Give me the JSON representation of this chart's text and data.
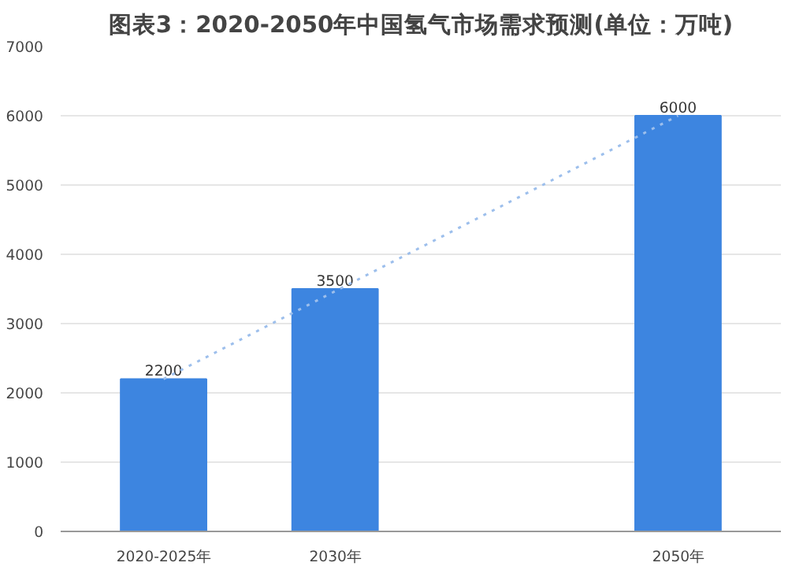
{
  "chart_data": {
    "type": "bar",
    "title": "图表3：2020-2050年中国氢气市场需求预测(单位：万吨)",
    "categories": [
      "2020-2025年",
      "2030年",
      null,
      "2050年"
    ],
    "series": [
      {
        "color": "#3d85e0",
        "values": [
          2200,
          3500,
          null,
          6000
        ],
        "value_labels": [
          "2200",
          "3500",
          null,
          "6000"
        ]
      },
      {
        "type": "line",
        "color": "#9dbfec",
        "line_style": "dotted",
        "values": [
          2200,
          null,
          null,
          6000
        ]
      }
    ],
    "ylim": [
      0,
      7000
    ],
    "yticks": [
      0,
      1000,
      2000,
      3000,
      4000,
      5000,
      6000,
      7000
    ],
    "grid": "y"
  }
}
